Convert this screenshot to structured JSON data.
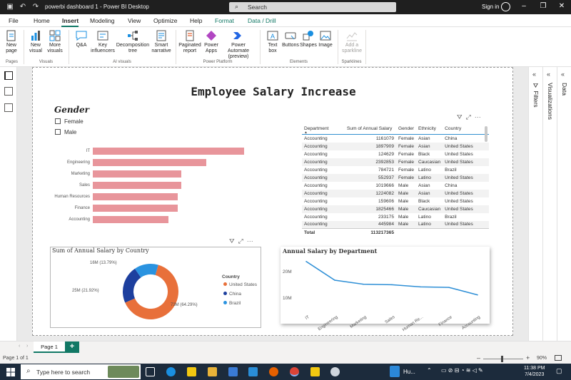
{
  "titlebar": {
    "doc_title": "powerbi dashboard 1 - Power BI Desktop",
    "search_label": "Search",
    "signin_label": "Sign in"
  },
  "menu": {
    "file": "File",
    "home": "Home",
    "insert": "Insert",
    "modeling": "Modeling",
    "view": "View",
    "optimize": "Optimize",
    "help": "Help",
    "format": "Format",
    "data_drill": "Data / Drill"
  },
  "ribbon": {
    "new_page": "New page",
    "new_visual": "New visual",
    "more_visuals": "More visuals",
    "qa": "Q&A",
    "key_influencers": "Key influencers",
    "decomposition_tree": "Decomposition tree",
    "smart_narrative": "Smart narrative",
    "paginated_report": "Paginated report",
    "power_apps": "Power Apps",
    "power_automate": "Power Automate (preview)",
    "text_box": "Text box",
    "buttons": "Buttons",
    "shapes": "Shapes",
    "image": "Image",
    "add_sparkline": "Add a sparkline",
    "group_pages": "Pages",
    "group_visuals": "Visuals",
    "group_ai_visuals": "AI visuals",
    "group_power_platform": "Power Platform",
    "group_elements": "Elements",
    "group_sparklines": "Sparklines"
  },
  "report": {
    "title": "Employee Salary Increase",
    "slicer": {
      "title": "Gender",
      "options": [
        "Female",
        "Male"
      ]
    },
    "dept_bar": {
      "categories": [
        "IT",
        "Engineering",
        "Marketing",
        "Sales",
        "Human Resources",
        "Finance",
        "Accounting"
      ]
    },
    "table": {
      "headers": [
        "Department",
        "Sum of Annual Salary",
        "Gender",
        "Ethnicity",
        "Country"
      ],
      "rows": [
        [
          "Accounting",
          "1161079",
          "Female",
          "Asian",
          "China"
        ],
        [
          "Accounting",
          "1897909",
          "Female",
          "Asian",
          "United States"
        ],
        [
          "Accounting",
          "124629",
          "Female",
          "Black",
          "United States"
        ],
        [
          "Accounting",
          "2392853",
          "Female",
          "Caucasian",
          "United States"
        ],
        [
          "Accounting",
          "784721",
          "Female",
          "Latino",
          "Brazil"
        ],
        [
          "Accounting",
          "552937",
          "Female",
          "Latino",
          "United States"
        ],
        [
          "Accounting",
          "1019666",
          "Male",
          "Asian",
          "China"
        ],
        [
          "Accounting",
          "1224082",
          "Male",
          "Asian",
          "United States"
        ],
        [
          "Accounting",
          "159606",
          "Male",
          "Black",
          "United States"
        ],
        [
          "Accounting",
          "1825466",
          "Male",
          "Caucasian",
          "United States"
        ],
        [
          "Accounting",
          "233175",
          "Male",
          "Latino",
          "Brazil"
        ],
        [
          "Accounting",
          "445984",
          "Male",
          "Latino",
          "United States"
        ]
      ],
      "total_label": "Total",
      "total_value": "113217365"
    },
    "donut": {
      "title": "Sum of Annual Salary by Country",
      "legend_title": "Country",
      "labels": [
        "73M (64.29%)",
        "25M (21.92%)",
        "16M (13.79%)"
      ]
    },
    "line": {
      "title": "Annual Salary by Department",
      "y_ticks": [
        "20M",
        "10M"
      ],
      "x_ticks": [
        "IT",
        "Engineering",
        "Marketing",
        "Sales",
        "Human Re...",
        "Finance",
        "Accounting"
      ]
    }
  },
  "chart_data": [
    {
      "type": "bar",
      "title": "",
      "categories": [
        "IT",
        "Engineering",
        "Marketing",
        "Sales",
        "Human Resources",
        "Finance",
        "Accounting"
      ],
      "values": [
        24,
        18,
        14,
        14,
        13.5,
        13.5,
        12
      ],
      "orientation": "horizontal",
      "color": "#e8959b"
    },
    {
      "type": "pie",
      "title": "Sum of Annual Salary by Country",
      "categories": [
        "United States",
        "China",
        "Brazil"
      ],
      "values": [
        73,
        25,
        16
      ],
      "percent": [
        64.29,
        21.92,
        13.79
      ],
      "colors": [
        "#e8703a",
        "#1d3f9e",
        "#2a93e0"
      ],
      "donut": true,
      "legend": "right"
    },
    {
      "type": "line",
      "title": "Annual Salary by Department",
      "categories": [
        "IT",
        "Engineering",
        "Marketing",
        "Sales",
        "Human Re...",
        "Finance",
        "Accounting"
      ],
      "values": [
        24,
        17,
        15.5,
        15.3,
        14.5,
        14.3,
        11.5
      ],
      "ylim": [
        5,
        25
      ],
      "y_ticks": [
        10,
        20
      ],
      "color": "#2e8fd6"
    }
  ],
  "rightpanes": {
    "filters": "Filters",
    "visualizations": "Visualizations",
    "data": "Data"
  },
  "pages": {
    "tab": "Page 1",
    "status": "Page 1 of 1",
    "zoom": "90%"
  },
  "taskbar": {
    "search_placeholder": "Type here to search",
    "weather": "Hu...",
    "time": "11:38 PM",
    "date": "7/4/2023"
  }
}
